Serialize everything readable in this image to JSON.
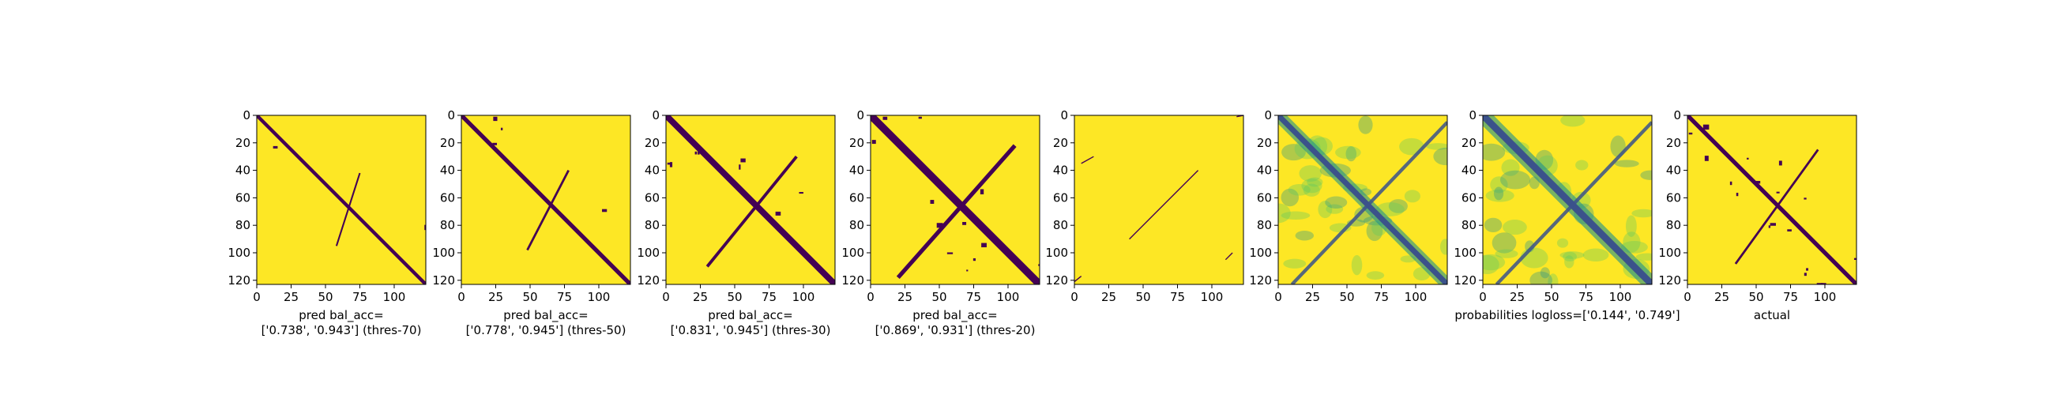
{
  "chart_data": [
    {
      "type": "heatmap",
      "xlabel_lines": [
        "pred bal_acc=",
        "['0.738', '0.943'] (thres-70)"
      ],
      "xticks": [
        0,
        25,
        50,
        75,
        100
      ],
      "yticks": [
        0,
        20,
        40,
        60,
        80,
        100,
        120
      ],
      "xlim": [
        0,
        123
      ],
      "ylim": [
        123,
        0
      ],
      "colormap": "viridis-binary",
      "values": "binary contact map: main anti-diagonal line; short off-diagonal segments",
      "pattern": {
        "main_width": 2.5,
        "cross": [
          [
            58,
            95,
            1.2
          ],
          [
            75,
            42,
            1.2
          ]
        ],
        "blobs": 2
      }
    },
    {
      "type": "heatmap",
      "xlabel_lines": [
        "pred bal_acc=",
        "['0.778', '0.945'] (thres-50)"
      ],
      "xticks": [
        0,
        25,
        50,
        75,
        100
      ],
      "yticks": [
        0,
        20,
        40,
        60,
        80,
        100,
        120
      ],
      "xlim": [
        0,
        123
      ],
      "ylim": [
        123,
        0
      ],
      "colormap": "viridis-binary",
      "pattern": {
        "main_width": 3,
        "cross": [
          [
            48,
            98,
            1.6
          ],
          [
            78,
            40,
            1.6
          ]
        ],
        "blobs": 4
      }
    },
    {
      "type": "heatmap",
      "xlabel_lines": [
        "pred bal_acc=",
        "['0.831', '0.945'] (thres-30)"
      ],
      "xticks": [
        0,
        25,
        50,
        75,
        100
      ],
      "yticks": [
        0,
        20,
        40,
        60,
        80,
        100,
        120
      ],
      "xlim": [
        0,
        123
      ],
      "ylim": [
        123,
        0
      ],
      "colormap": "viridis-binary",
      "pattern": {
        "main_width": 4.5,
        "cross": [
          [
            30,
            110,
            2.2
          ],
          [
            95,
            30,
            2.2
          ]
        ],
        "blobs": 8
      }
    },
    {
      "type": "heatmap",
      "xlabel_lines": [
        "pred bal_acc=",
        "['0.869', '0.931'] (thres-20)"
      ],
      "xticks": [
        0,
        25,
        50,
        75,
        100
      ],
      "yticks": [
        0,
        20,
        40,
        60,
        80,
        100,
        120
      ],
      "xlim": [
        0,
        123
      ],
      "ylim": [
        123,
        0
      ],
      "colormap": "viridis-binary",
      "pattern": {
        "main_width": 5.5,
        "cross": [
          [
            20,
            118,
            3
          ],
          [
            105,
            22,
            3
          ]
        ],
        "blobs": 14
      }
    },
    {
      "type": "heatmap",
      "xlabel_lines": [],
      "xticks": [
        0,
        25,
        50,
        75,
        100
      ],
      "yticks": [
        0,
        20,
        40,
        60,
        80,
        100,
        120
      ],
      "xlim": [
        0,
        123
      ],
      "ylim": [
        123,
        0
      ],
      "colormap": "viridis-binary",
      "pattern": {
        "main_width": 0,
        "thin_lines": [
          [
            [
              40,
              90
            ],
            [
              90,
              40
            ]
          ],
          [
            [
              14,
              30
            ],
            [
              5,
              35
            ]
          ],
          [
            [
              118,
              1
            ],
            [
              123,
              0
            ]
          ],
          [
            [
              0,
              121
            ],
            [
              5,
              117
            ]
          ],
          [
            [
              110,
              105
            ],
            [
              115,
              100
            ]
          ]
        ]
      }
    },
    {
      "type": "heatmap",
      "xlabel_lines": [],
      "xticks": [
        0,
        25,
        50,
        75,
        100
      ],
      "yticks": [
        0,
        20,
        40,
        60,
        80,
        100,
        120
      ],
      "xlim": [
        0,
        123
      ],
      "ylim": [
        123,
        0
      ],
      "colormap": "viridis",
      "pattern": {
        "main_width": 4,
        "cross": [
          [
            10,
            123,
            2.5
          ],
          [
            123,
            5,
            2.5
          ]
        ],
        "soft": true
      }
    },
    {
      "type": "heatmap",
      "xlabel_lines": [
        "probabilities logloss=['0.144', '0.749']"
      ],
      "xticks": [
        0,
        25,
        50,
        75,
        100
      ],
      "yticks": [
        0,
        20,
        40,
        60,
        80,
        100,
        120
      ],
      "xlim": [
        0,
        123
      ],
      "ylim": [
        123,
        0
      ],
      "colormap": "viridis",
      "pattern": {
        "main_width": 5,
        "cross": [
          [
            10,
            123,
            2.5
          ],
          [
            123,
            5,
            2.5
          ]
        ],
        "soft": true
      }
    },
    {
      "type": "heatmap",
      "xlabel_lines": [
        "actual"
      ],
      "xticks": [
        0,
        25,
        50,
        75,
        100
      ],
      "yticks": [
        0,
        20,
        40,
        60,
        80,
        100,
        120
      ],
      "xlim": [
        0,
        123
      ],
      "ylim": [
        123,
        0
      ],
      "colormap": "viridis-binary",
      "pattern": {
        "main_width": 3,
        "cross": [
          [
            35,
            108,
            1.6
          ],
          [
            95,
            25,
            1.6
          ]
        ],
        "blobs": 18
      }
    }
  ],
  "colors": {
    "yellow": "#fde725",
    "purple": "#440154",
    "teal": "#21918c",
    "green": "#5ec962",
    "blue": "#3b528b"
  }
}
